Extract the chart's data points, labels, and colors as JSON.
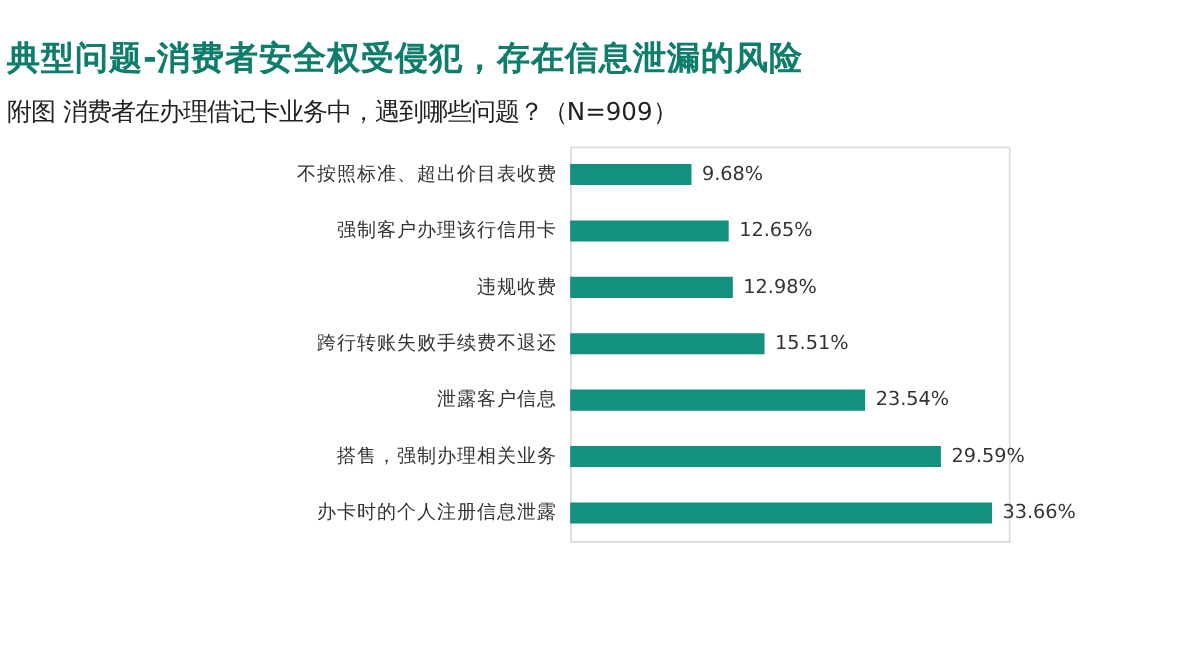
{
  "chart_data": {
    "type": "bar",
    "orientation": "horizontal",
    "title": "典型问题-消费者安全权受侵犯，存在信息泄漏的风险",
    "subtitle": "附图 消费者在办理借记卡业务中，遇到哪些问题？（N=909）",
    "categories": [
      "不按照标准、超出价目表收费",
      "强制客户办理该行信用卡",
      "违规收费",
      "跨行转账失败手续费不退还",
      "泄露客户信息",
      "搭售，强制办理相关业务",
      "办卡时的个人注册信息泄露"
    ],
    "values": [
      9.68,
      12.65,
      12.98,
      15.51,
      23.54,
      29.59,
      33.66
    ],
    "value_labels": [
      "9.68%",
      "12.65%",
      "12.98%",
      "15.51%",
      "23.54%",
      "29.59%",
      "33.66%"
    ],
    "color": "#13907e"
  }
}
